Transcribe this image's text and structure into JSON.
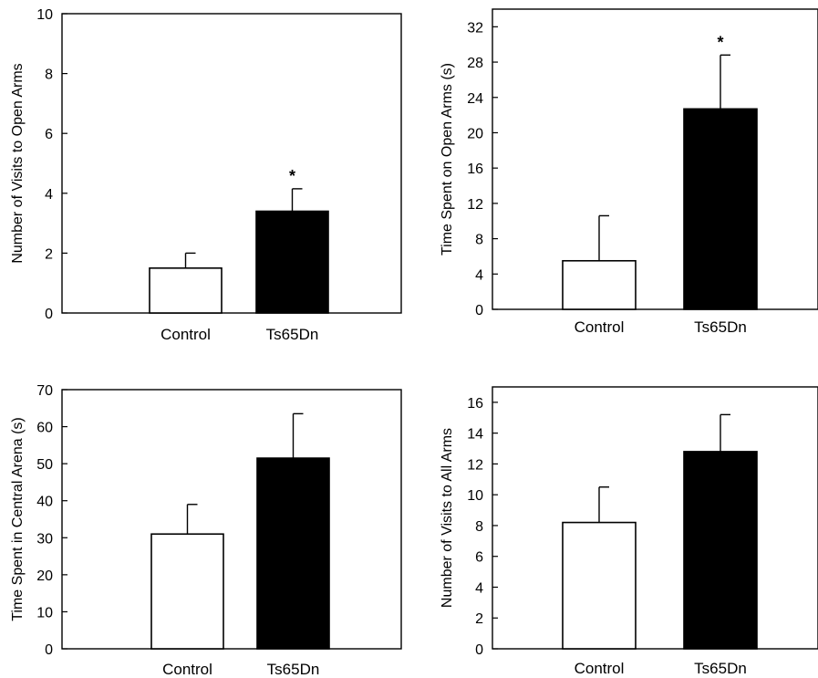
{
  "chart_data": [
    {
      "type": "bar",
      "categories": [
        "Control",
        "Ts65Dn"
      ],
      "values": [
        1.5,
        3.4
      ],
      "errors": [
        0.5,
        0.75
      ],
      "significance": [
        "",
        "*"
      ],
      "ylabel": "Number of Visits to Open Arms",
      "ylim": [
        0,
        10
      ],
      "yticks": [
        0,
        2,
        4,
        6,
        8,
        10
      ],
      "bar_colors": [
        "#ffffff",
        "#000000"
      ],
      "grid": false
    },
    {
      "type": "bar",
      "categories": [
        "Control",
        "Ts65Dn"
      ],
      "values": [
        5.5,
        22.7
      ],
      "errors": [
        5.1,
        6.1
      ],
      "significance": [
        "",
        "*"
      ],
      "ylabel": "Time Spent on Open Arms (s)",
      "ylim": [
        0,
        34
      ],
      "yticks": [
        0,
        4,
        8,
        12,
        16,
        20,
        24,
        28,
        32
      ],
      "bar_colors": [
        "#ffffff",
        "#000000"
      ],
      "grid": false
    },
    {
      "type": "bar",
      "categories": [
        "Control",
        "Ts65Dn"
      ],
      "values": [
        31,
        51.5
      ],
      "errors": [
        8,
        12
      ],
      "significance": [
        "",
        ""
      ],
      "ylabel": "Time Spent in Central Arena (s)",
      "ylim": [
        0,
        70
      ],
      "yticks": [
        0,
        10,
        20,
        30,
        40,
        50,
        60,
        70
      ],
      "bar_colors": [
        "#ffffff",
        "#000000"
      ],
      "grid": false
    },
    {
      "type": "bar",
      "categories": [
        "Control",
        "Ts65Dn"
      ],
      "values": [
        8.2,
        12.8
      ],
      "errors": [
        2.3,
        2.4
      ],
      "significance": [
        "",
        ""
      ],
      "ylabel": "Number of Visits to All Arms",
      "ylim": [
        0,
        17
      ],
      "yticks": [
        0,
        2,
        4,
        6,
        8,
        10,
        12,
        14,
        16
      ],
      "bar_colors": [
        "#ffffff",
        "#000000"
      ],
      "grid": false
    }
  ]
}
